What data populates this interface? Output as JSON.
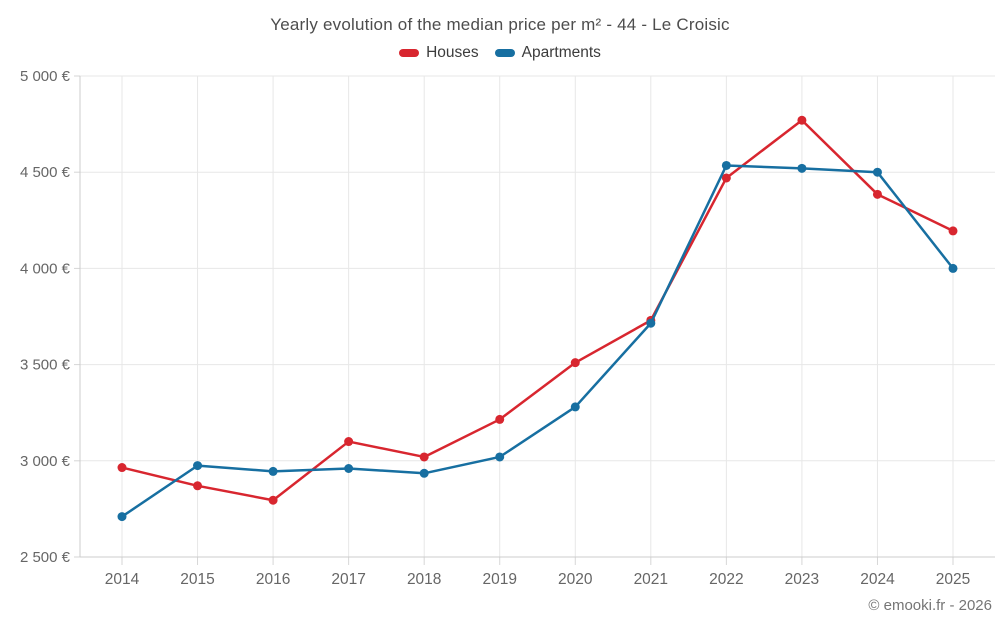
{
  "title": "Yearly evolution of the median price per m² - 44 - Le Croisic",
  "footer": "© emooki.fr - 2026",
  "colors": {
    "houses": "#d8262f",
    "apartments": "#176fa1",
    "grid": "#e7e7e7",
    "axis": "#cccccc",
    "tick": "#d6d6d6",
    "axis_label": "#666666",
    "title_text": "#4d4d4d",
    "background": "#ffffff"
  },
  "chart_data": {
    "type": "line",
    "title": "Yearly evolution of the median price per m² - 44 - Le Croisic",
    "categories": [
      "2014",
      "2015",
      "2016",
      "2017",
      "2018",
      "2019",
      "2020",
      "2021",
      "2022",
      "2023",
      "2024",
      "2025"
    ],
    "series": [
      {
        "name": "Houses",
        "color": "#d8262f",
        "values": [
          2965,
          2870,
          2795,
          3100,
          3020,
          3215,
          3510,
          3730,
          4470,
          4770,
          4385,
          4195
        ]
      },
      {
        "name": "Apartments",
        "color": "#176fa1",
        "values": [
          2710,
          2975,
          2945,
          2960,
          2935,
          3020,
          3280,
          3715,
          4535,
          4520,
          4500,
          4000
        ]
      }
    ],
    "xlabel": "",
    "ylabel": "",
    "ylim": [
      2500,
      5000
    ],
    "y_tick_values": [
      2500,
      3000,
      3500,
      4000,
      4500,
      5000
    ],
    "y_tick_labels": [
      "2 500 €",
      "3 000 €",
      "3 500 €",
      "4 000 €",
      "4 500 €",
      "5 000 €"
    ],
    "grid": true,
    "legend_position": "top",
    "marker": "circle"
  }
}
